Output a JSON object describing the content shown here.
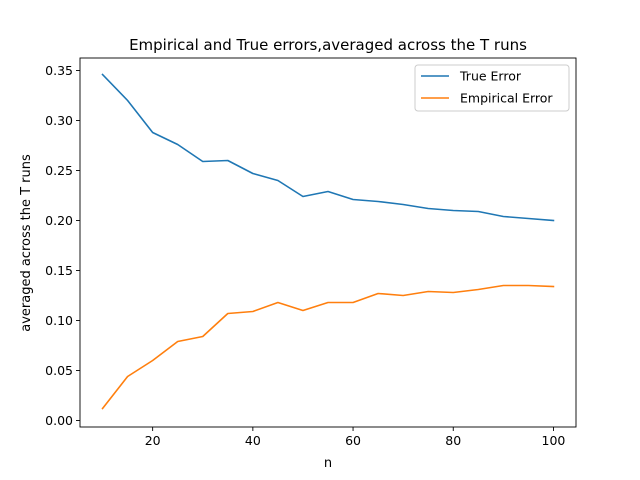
{
  "chart_data": {
    "type": "line",
    "title": "Empirical and True errors,averaged across the T runs",
    "xlabel": "n",
    "ylabel": "averaged across the T runs",
    "xlim": [
      5.5,
      104.5
    ],
    "ylim": [
      -0.0065,
      0.3625
    ],
    "xticks": [
      20,
      40,
      60,
      80,
      100
    ],
    "yticks": [
      0.0,
      0.05,
      0.1,
      0.15,
      0.2,
      0.25,
      0.3,
      0.35
    ],
    "xtick_labels": [
      "20",
      "40",
      "60",
      "80",
      "100"
    ],
    "ytick_labels": [
      "0.00",
      "0.05",
      "0.10",
      "0.15",
      "0.20",
      "0.25",
      "0.30",
      "0.35"
    ],
    "grid": false,
    "legend_position": "top-right",
    "x": [
      10,
      15,
      20,
      25,
      30,
      35,
      40,
      45,
      50,
      55,
      60,
      65,
      70,
      75,
      80,
      85,
      90,
      95,
      100
    ],
    "series": [
      {
        "name": "True Error",
        "color": "#1f77b4",
        "values": [
          0.346,
          0.32,
          0.288,
          0.276,
          0.259,
          0.26,
          0.247,
          0.24,
          0.224,
          0.229,
          0.221,
          0.219,
          0.216,
          0.212,
          0.21,
          0.209,
          0.204,
          0.202,
          0.2
        ]
      },
      {
        "name": "Empirical Error",
        "color": "#ff7f0e",
        "values": [
          0.012,
          0.044,
          0.06,
          0.079,
          0.084,
          0.107,
          0.109,
          0.118,
          0.11,
          0.118,
          0.118,
          0.127,
          0.125,
          0.129,
          0.128,
          0.131,
          0.135,
          0.135,
          0.134
        ]
      }
    ]
  }
}
